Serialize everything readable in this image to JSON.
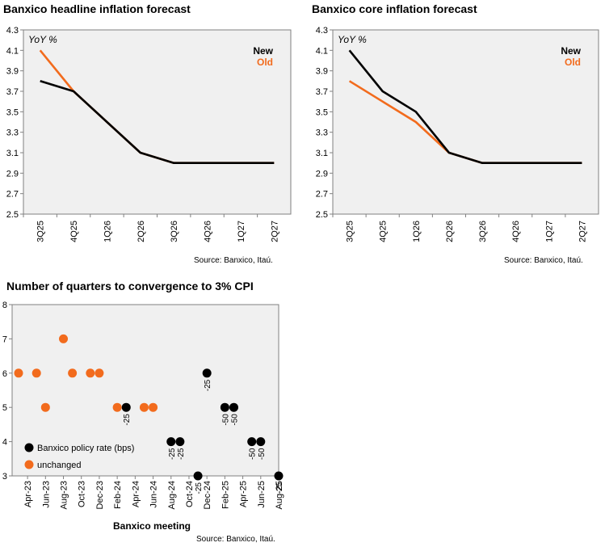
{
  "colors": {
    "new": "#000000",
    "old": "#f26b1d",
    "plot_bg": "#f0f0f0",
    "axis": "#808080"
  },
  "chart_data": [
    {
      "type": "line",
      "title": "Banxico headline inflation forecast",
      "unit_label": "YoY %",
      "categories": [
        "3Q25",
        "4Q25",
        "1Q26",
        "2Q26",
        "3Q26",
        "4Q26",
        "1Q27",
        "2Q27"
      ],
      "series": [
        {
          "name": "New",
          "values": [
            3.8,
            3.7,
            3.4,
            3.1,
            3.0,
            3.0,
            3.0,
            3.0
          ]
        },
        {
          "name": "Old",
          "values": [
            4.1,
            3.7,
            3.4,
            3.1,
            3.0,
            3.0,
            3.0,
            3.0
          ]
        }
      ],
      "ylim": [
        2.5,
        4.3
      ],
      "yticks": [
        "4.3",
        "4.1",
        "3.9",
        "3.7",
        "3.5",
        "3.3",
        "3.1",
        "2.9",
        "2.7",
        "2.5"
      ],
      "legend_position": "top-right",
      "grid": false,
      "source": "Source: Banxico, Itaú."
    },
    {
      "type": "line",
      "title": "Banxico core inflation forecast",
      "unit_label": "YoY %",
      "categories": [
        "3Q25",
        "4Q25",
        "1Q26",
        "2Q26",
        "3Q26",
        "4Q26",
        "1Q27",
        "2Q27"
      ],
      "series": [
        {
          "name": "New",
          "values": [
            4.1,
            3.7,
            3.5,
            3.1,
            3.0,
            3.0,
            3.0,
            3.0
          ]
        },
        {
          "name": "Old",
          "values": [
            3.8,
            3.6,
            3.4,
            3.1,
            3.0,
            3.0,
            3.0,
            3.0
          ]
        }
      ],
      "ylim": [
        2.5,
        4.3
      ],
      "yticks": [
        "4.3",
        "4.1",
        "3.9",
        "3.7",
        "3.5",
        "3.3",
        "3.1",
        "2.9",
        "2.7",
        "2.5"
      ],
      "legend_position": "top-right",
      "grid": false,
      "source": "Source: Banxico, Itaú."
    },
    {
      "type": "scatter",
      "title": "Number of quarters to convergence to 3% CPI",
      "xlabel": "Banxico meeting",
      "xticks": [
        "Apr-23",
        "Jun-23",
        "Aug-23",
        "Oct-23",
        "Dec-23",
        "Feb-24",
        "Apr-24",
        "Jun-24",
        "Aug-24",
        "Oct-24",
        "Dec-24",
        "Feb-25",
        "Apr-25",
        "Jun-25",
        "Aug-25"
      ],
      "ylim": [
        3,
        8
      ],
      "yticks": [
        "8",
        "7",
        "6",
        "5",
        "4",
        "3"
      ],
      "series": [
        {
          "name": "Banxico policy rate (bps)",
          "points": [
            {
              "x": "Mar-24",
              "y": 5,
              "label": "-25"
            },
            {
              "x": "Aug-24",
              "y": 4,
              "label": "-25"
            },
            {
              "x": "Sep-24",
              "y": 4,
              "label": "-25"
            },
            {
              "x": "Nov-24",
              "y": 3,
              "label": "-25"
            },
            {
              "x": "Dec-24",
              "y": 6,
              "label": "-25"
            },
            {
              "x": "Feb-25",
              "y": 5,
              "label": "-50"
            },
            {
              "x": "Mar-25",
              "y": 5,
              "label": "-50"
            },
            {
              "x": "May-25",
              "y": 4,
              "label": "-50"
            },
            {
              "x": "Jun-25",
              "y": 4,
              "label": "-50"
            },
            {
              "x": "Aug-25",
              "y": 3,
              "label": "-25"
            }
          ]
        },
        {
          "name": "unchanged",
          "points": [
            {
              "x": "Mar-23",
              "y": 6
            },
            {
              "x": "May-23",
              "y": 6
            },
            {
              "x": "Jun-23",
              "y": 5
            },
            {
              "x": "Aug-23",
              "y": 7
            },
            {
              "x": "Sep-23",
              "y": 6
            },
            {
              "x": "Nov-23",
              "y": 6
            },
            {
              "x": "Dec-23",
              "y": 6
            },
            {
              "x": "Feb-24",
              "y": 5
            },
            {
              "x": "May-24",
              "y": 5
            },
            {
              "x": "Jun-24",
              "y": 5
            }
          ]
        }
      ],
      "legend_position": "bottom-left",
      "grid": false,
      "source": "Source: Banxico, Itaú."
    }
  ]
}
